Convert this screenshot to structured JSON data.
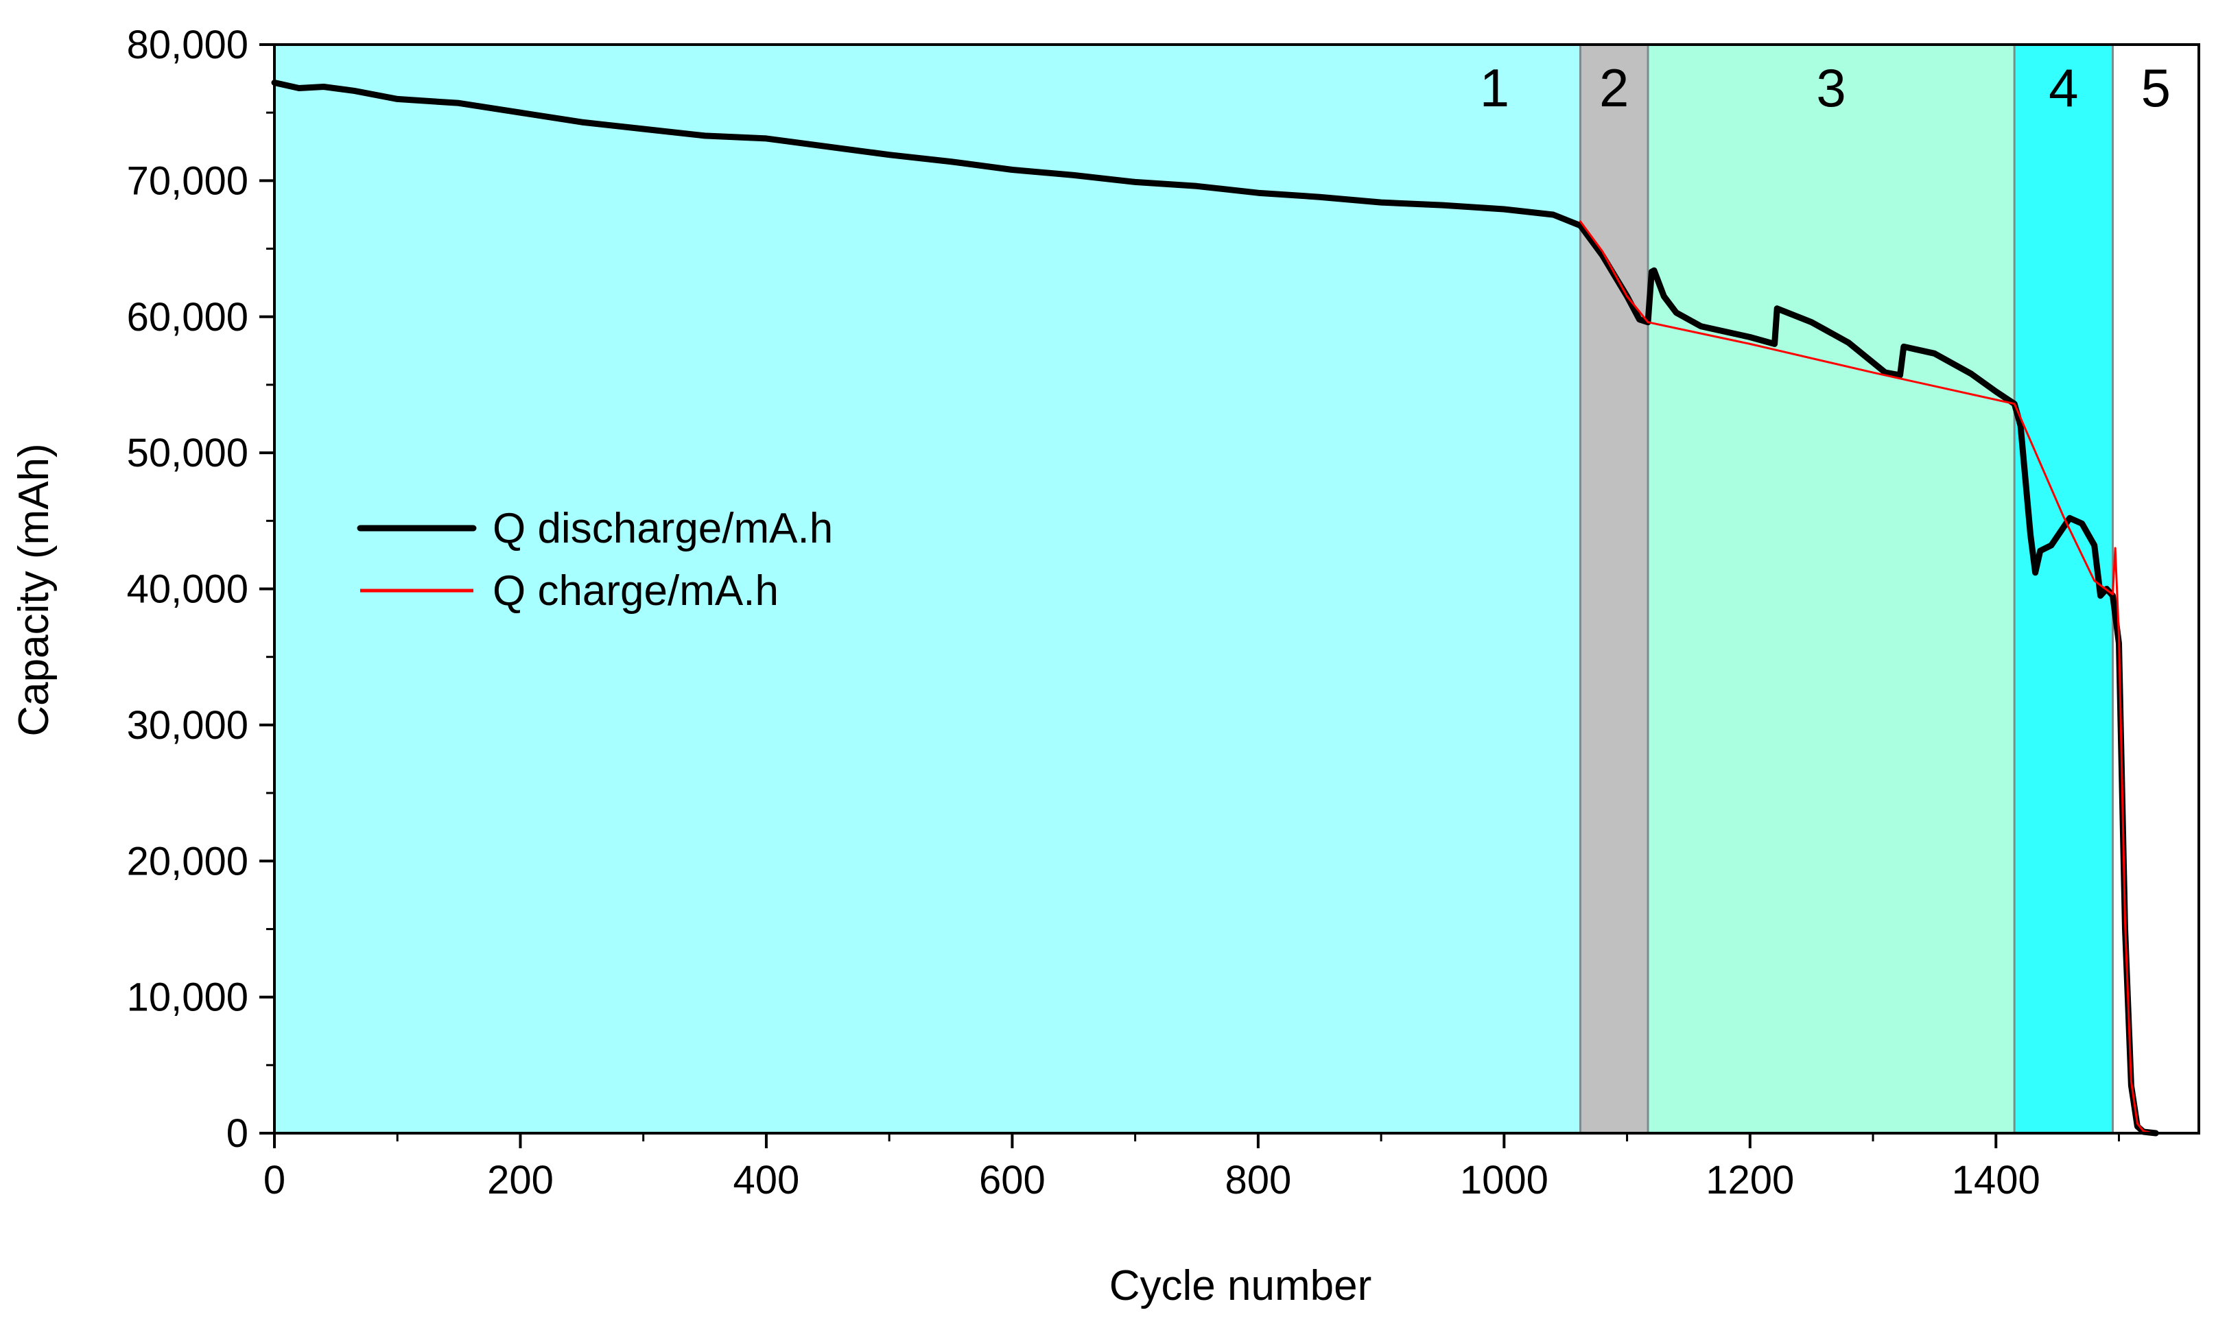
{
  "chart_data": {
    "type": "line",
    "title": "",
    "xlabel": "Cycle number",
    "ylabel": "Capacity (mAh)",
    "xlim": [
      0,
      1565
    ],
    "ylim": [
      0,
      80000
    ],
    "x_ticks": [
      0,
      200,
      400,
      600,
      800,
      1000,
      1200,
      1400
    ],
    "x_tick_labels": [
      "0",
      "200",
      "400",
      "600",
      "800",
      "1000",
      "1200",
      "1400"
    ],
    "y_ticks": [
      0,
      10000,
      20000,
      30000,
      40000,
      50000,
      60000,
      70000,
      80000
    ],
    "y_tick_labels": [
      "0",
      "10,000",
      "20,000",
      "30,000",
      "40,000",
      "50,000",
      "60,000",
      "70,000",
      "80,000"
    ],
    "regions": [
      {
        "label": "1",
        "x_start": 0,
        "x_end": 1062,
        "color": "#a8ffff"
      },
      {
        "label": "2",
        "x_start": 1062,
        "x_end": 1117,
        "color": "#c0c0c0"
      },
      {
        "label": "3",
        "x_start": 1117,
        "x_end": 1415,
        "color": "#aaffe0"
      },
      {
        "label": "4",
        "x_start": 1415,
        "x_end": 1495,
        "color": "#33ffff"
      },
      {
        "label": "5",
        "x_start": 1495,
        "x_end": 1565,
        "color": "#ffffff"
      }
    ],
    "legend_position": "center-left",
    "series": [
      {
        "name": "Q discharge/mA.h",
        "color": "#000000",
        "x": [
          0,
          20,
          40,
          65,
          100,
          150,
          200,
          250,
          300,
          350,
          400,
          450,
          500,
          550,
          600,
          650,
          700,
          750,
          800,
          850,
          900,
          950,
          1000,
          1040,
          1062,
          1080,
          1100,
          1110,
          1117,
          1120,
          1122,
          1130,
          1140,
          1160,
          1200,
          1220,
          1222,
          1250,
          1280,
          1310,
          1322,
          1325,
          1350,
          1380,
          1400,
          1415,
          1420,
          1428,
          1432,
          1436,
          1445,
          1460,
          1470,
          1480,
          1485,
          1490,
          1495,
          1500,
          1505,
          1510,
          1515,
          1520,
          1525,
          1530
        ],
        "y": [
          77200,
          76800,
          76900,
          76600,
          76000,
          75700,
          75000,
          74300,
          73800,
          73300,
          73100,
          72500,
          71900,
          71400,
          70800,
          70400,
          69900,
          69600,
          69100,
          68800,
          68400,
          68200,
          67900,
          67500,
          66700,
          64500,
          61500,
          59800,
          59600,
          63300,
          63400,
          61500,
          60300,
          59300,
          58500,
          58000,
          60600,
          59600,
          58100,
          55900,
          55700,
          57800,
          57300,
          55800,
          54500,
          53600,
          52000,
          44000,
          41200,
          42800,
          43200,
          45200,
          44800,
          43200,
          39500,
          40000,
          39500,
          36000,
          15000,
          3500,
          500,
          100,
          50,
          0
        ]
      },
      {
        "name": "Q charge/mA.h",
        "color": "#ff0000",
        "x": [
          1062,
          1080,
          1100,
          1117,
          1200,
          1300,
          1415,
          1455,
          1480,
          1495,
          1497,
          1500,
          1505,
          1510,
          1515,
          1520,
          1525
        ],
        "y": [
          67000,
          64800,
          61500,
          59600,
          58000,
          55900,
          53600,
          45300,
          40600,
          39600,
          43000,
          36500,
          15500,
          3800,
          700,
          150,
          50
        ]
      }
    ]
  }
}
